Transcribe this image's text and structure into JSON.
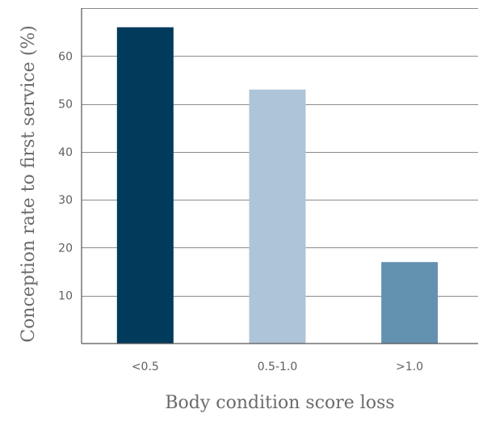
{
  "chart_data": {
    "type": "bar",
    "categories": [
      "<0.5",
      "0.5-1.0",
      ">1.0"
    ],
    "values": [
      66,
      53,
      17
    ],
    "colors": [
      "#003b5c",
      "#aec4d8",
      "#6391b0"
    ],
    "xlabel": "Body condition score loss",
    "ylabel": "Conception rate to first service (%)",
    "ylim": [
      0,
      70
    ],
    "yticks": [
      10,
      20,
      30,
      40,
      50,
      60
    ],
    "grid": true
  }
}
